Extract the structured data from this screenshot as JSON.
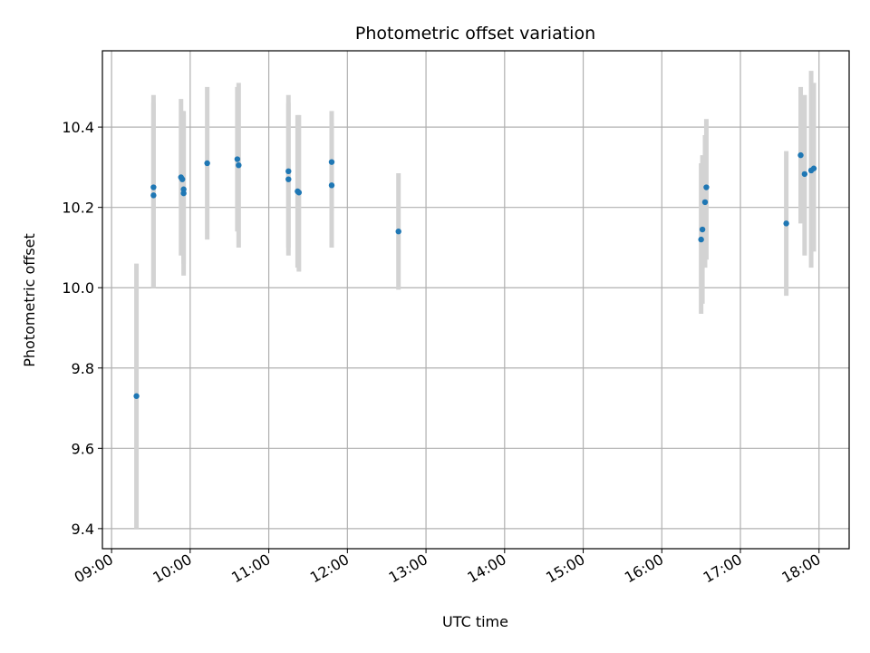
{
  "chart_data": {
    "type": "scatter",
    "title": "Photometric offset variation",
    "xlabel": "UTC time",
    "ylabel": "Photometric offset",
    "x_is_time": true,
    "xlim": [
      "08:53",
      "18:23"
    ],
    "ylim": [
      9.35,
      10.59
    ],
    "x_ticks": [
      "09:00",
      "10:00",
      "11:00",
      "12:00",
      "13:00",
      "14:00",
      "15:00",
      "16:00",
      "17:00",
      "18:00"
    ],
    "y_ticks": [
      9.4,
      9.6,
      9.8,
      10.0,
      10.2,
      10.4
    ],
    "y_tick_labels": [
      "9.4",
      "9.6",
      "9.8",
      "10.0",
      "10.2",
      "10.4"
    ],
    "grid": true,
    "point_color": "#1f77b4",
    "errorbar_color": "#d3d3d3",
    "points": [
      {
        "t": "09:19",
        "y": 9.73,
        "low": 9.4,
        "high": 10.06
      },
      {
        "t": "09:32",
        "y": 10.25,
        "low": 10.0,
        "high": 10.48
      },
      {
        "t": "09:32",
        "y": 10.23,
        "low": 10.0,
        "high": 10.46
      },
      {
        "t": "09:53",
        "y": 10.275,
        "low": 10.08,
        "high": 10.47
      },
      {
        "t": "09:54",
        "y": 10.27,
        "low": 10.1,
        "high": 10.44
      },
      {
        "t": "09:55",
        "y": 10.245,
        "low": 10.03,
        "high": 10.44
      },
      {
        "t": "09:55",
        "y": 10.235,
        "low": 10.06,
        "high": 10.43
      },
      {
        "t": "10:13",
        "y": 10.31,
        "low": 10.12,
        "high": 10.5
      },
      {
        "t": "10:36",
        "y": 10.32,
        "low": 10.14,
        "high": 10.5
      },
      {
        "t": "10:37",
        "y": 10.305,
        "low": 10.1,
        "high": 10.51
      },
      {
        "t": "11:15",
        "y": 10.29,
        "low": 10.1,
        "high": 10.48
      },
      {
        "t": "11:15",
        "y": 10.27,
        "low": 10.08,
        "high": 10.46
      },
      {
        "t": "11:22",
        "y": 10.24,
        "low": 10.05,
        "high": 10.43
      },
      {
        "t": "11:23",
        "y": 10.237,
        "low": 10.04,
        "high": 10.43
      },
      {
        "t": "11:48",
        "y": 10.313,
        "low": 10.19,
        "high": 10.44
      },
      {
        "t": "11:48",
        "y": 10.255,
        "low": 10.1,
        "high": 10.41
      },
      {
        "t": "12:39",
        "y": 10.14,
        "low": 9.995,
        "high": 10.285
      },
      {
        "t": "16:30",
        "y": 10.12,
        "low": 9.935,
        "high": 10.31
      },
      {
        "t": "16:31",
        "y": 10.145,
        "low": 9.96,
        "high": 10.33
      },
      {
        "t": "16:33",
        "y": 10.213,
        "low": 10.05,
        "high": 10.38
      },
      {
        "t": "16:34",
        "y": 10.25,
        "low": 10.07,
        "high": 10.42
      },
      {
        "t": "17:35",
        "y": 10.16,
        "low": 9.98,
        "high": 10.34
      },
      {
        "t": "17:46",
        "y": 10.33,
        "low": 10.16,
        "high": 10.5
      },
      {
        "t": "17:49",
        "y": 10.283,
        "low": 10.08,
        "high": 10.48
      },
      {
        "t": "17:54",
        "y": 10.292,
        "low": 10.05,
        "high": 10.54
      },
      {
        "t": "17:56",
        "y": 10.297,
        "low": 10.09,
        "high": 10.51
      }
    ]
  }
}
